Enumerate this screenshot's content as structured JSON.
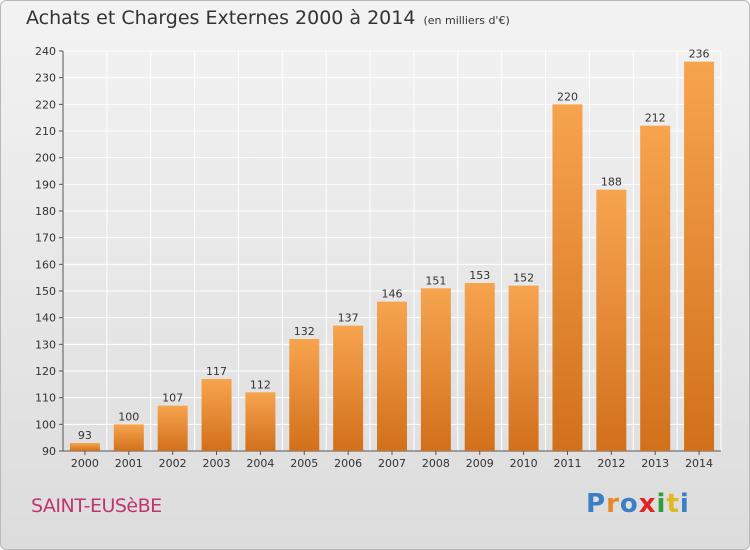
{
  "header": {
    "title": "Achats et Charges Externes 2000 à 2014",
    "unit": "(en milliers d'€)"
  },
  "footer": {
    "city": "SAINT-EUSèBE",
    "brand_letters": [
      "P",
      "r",
      "o",
      "x",
      "i",
      "t",
      "i"
    ],
    "brand_colors": [
      "#3a7fc4",
      "#e8882b",
      "#3a7fc4",
      "#e02424",
      "#2e9f3a",
      "#e0b81f",
      "#3a7fc4"
    ]
  },
  "colors": {
    "bar_top": "#f7a44f",
    "bar_bottom": "#d2701b",
    "grid": "#ffffff",
    "text": "#333333"
  },
  "chart_data": {
    "type": "bar",
    "title": "Achats et Charges Externes 2000 à 2014",
    "subtitle": "(en milliers d'€)",
    "categories": [
      "2000",
      "2001",
      "2002",
      "2003",
      "2004",
      "2005",
      "2006",
      "2007",
      "2008",
      "2009",
      "2010",
      "2011",
      "2012",
      "2013",
      "2014"
    ],
    "values": [
      93,
      100,
      107,
      117,
      112,
      132,
      137,
      146,
      151,
      153,
      152,
      220,
      188,
      212,
      236
    ],
    "ylim": [
      90,
      240
    ],
    "yticks": [
      90,
      100,
      110,
      120,
      130,
      140,
      150,
      160,
      170,
      180,
      190,
      200,
      210,
      220,
      230,
      240
    ],
    "grid": true,
    "data_labels": true
  }
}
